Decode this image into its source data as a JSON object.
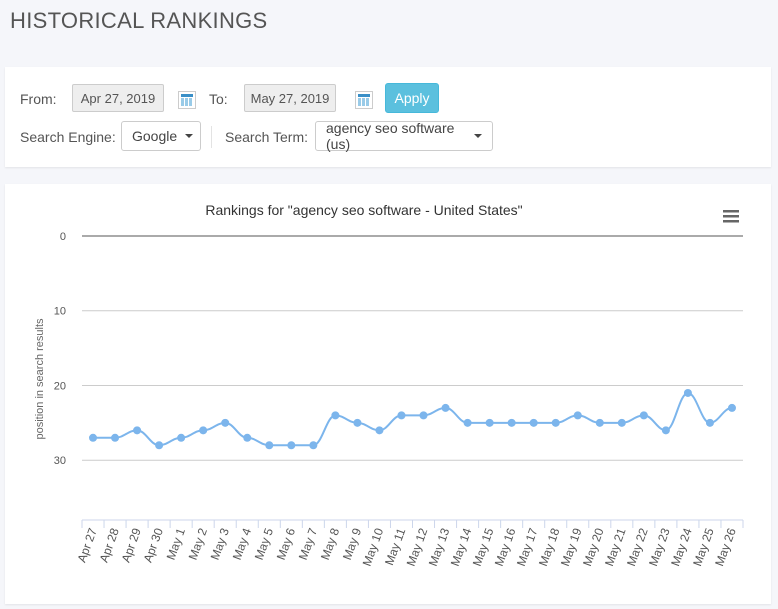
{
  "page_title": "HISTORICAL RANKINGS",
  "filters": {
    "from_label": "From:",
    "from_value": "Apr 27, 2019",
    "to_label": "To:",
    "to_value": "May 27, 2019",
    "apply_label": "Apply",
    "engine_label": "Search Engine:",
    "engine_value": "Google",
    "term_label": "Search Term:",
    "term_value": "agency seo software (us)",
    "icons": [
      "calendar-icon",
      "chevron-down-icon"
    ]
  },
  "colors": {
    "accent": "#5bc0de",
    "series": "#7cb5ec"
  },
  "chart_data": {
    "type": "line",
    "title": "Rankings for \"agency seo software - United States\"",
    "ylabel": "position in search results",
    "xlabel": "",
    "y_reversed": true,
    "ylim": [
      0,
      38
    ],
    "yticks": [
      0,
      10,
      20,
      30
    ],
    "grid": true,
    "menu_icon": "hamburger-menu-icon",
    "categories": [
      "Apr 27",
      "Apr 28",
      "Apr 29",
      "Apr 30",
      "May 1",
      "May 2",
      "May 3",
      "May 4",
      "May 5",
      "May 6",
      "May 7",
      "May 8",
      "May 9",
      "May 10",
      "May 11",
      "May 12",
      "May 13",
      "May 14",
      "May 15",
      "May 16",
      "May 17",
      "May 18",
      "May 19",
      "May 20",
      "May 21",
      "May 22",
      "May 23",
      "May 24",
      "May 25",
      "May 26"
    ],
    "values": [
      27,
      27,
      26,
      28,
      27,
      26,
      25,
      27,
      28,
      28,
      28,
      24,
      25,
      26,
      24,
      24,
      23,
      25,
      25,
      25,
      25,
      25,
      24,
      25,
      25,
      24,
      26,
      21,
      25,
      23
    ]
  }
}
